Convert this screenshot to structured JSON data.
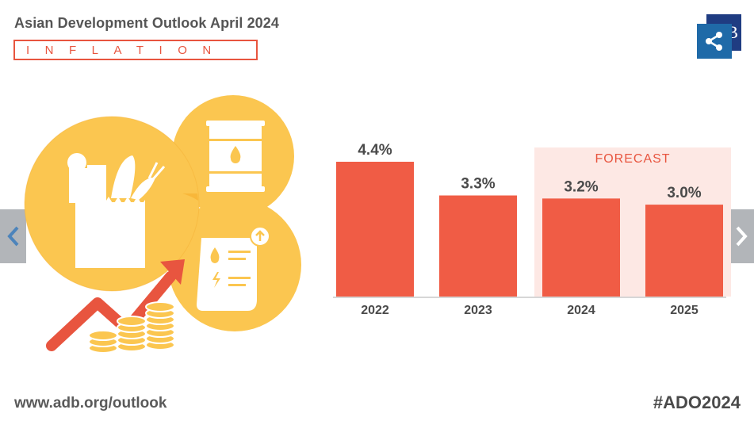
{
  "header": {
    "title": "Asian Development Outlook April 2024",
    "subtitle": "INFLATION"
  },
  "footer": {
    "url": "www.adb.org/outlook",
    "hashtag": "#ADO2024"
  },
  "share": {
    "brand_letter": "B",
    "icon": "share-icon"
  },
  "navigation": {
    "prev_icon": "chevron-left-icon",
    "next_icon": "chevron-right-icon"
  },
  "colors": {
    "bar": "#f05c45",
    "forecast_bg": "#fde8e4",
    "forecast_text": "#e8553f",
    "illustration_yellow": "#fbc650",
    "arrow": "#e8553f"
  },
  "chart_data": {
    "type": "bar",
    "categories": [
      "2022",
      "2023",
      "2024",
      "2025"
    ],
    "values": [
      4.4,
      3.3,
      3.2,
      3.0
    ],
    "value_labels": [
      "4.4%",
      "3.3%",
      "3.2%",
      "3.0%"
    ],
    "annotation": {
      "text": "FORECAST",
      "applies_to": [
        "2024",
        "2025"
      ]
    },
    "ylim": [
      0,
      4.4
    ],
    "grid": false,
    "legend": "none"
  }
}
